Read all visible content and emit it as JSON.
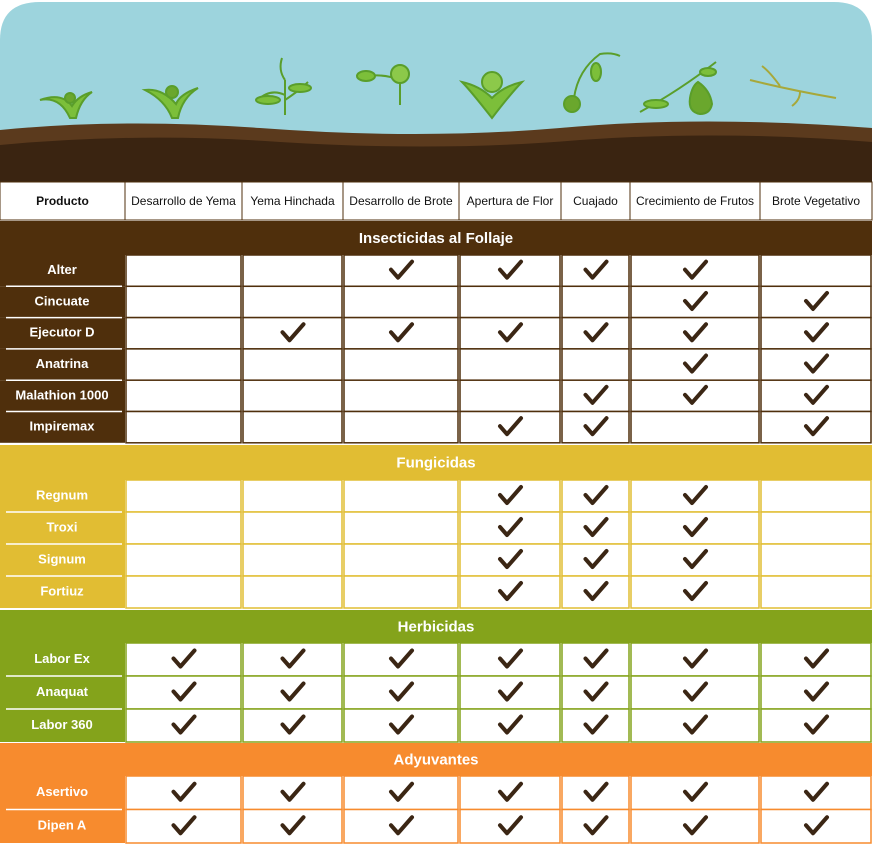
{
  "columns": [
    "Producto",
    "Desarrollo de Yema",
    "Yema Hinchada",
    "Desarrollo de Brote",
    "Apertura de Flor",
    "Cuajado",
    "Crecimiento de Frutos",
    "Brote Vegetativo"
  ],
  "sections": [
    {
      "title": "Insecticidas al Follaje",
      "color": "#4f2f0c",
      "rows": [
        {
          "name": "Alter",
          "checks": [
            false,
            false,
            true,
            true,
            true,
            true,
            false
          ]
        },
        {
          "name": "Cincuate",
          "checks": [
            false,
            false,
            false,
            false,
            false,
            true,
            true
          ]
        },
        {
          "name": "Ejecutor D",
          "checks": [
            false,
            true,
            true,
            true,
            true,
            true,
            true
          ]
        },
        {
          "name": "Anatrina",
          "checks": [
            false,
            false,
            false,
            false,
            false,
            true,
            true
          ]
        },
        {
          "name": "Malathion 1000",
          "checks": [
            false,
            false,
            false,
            false,
            true,
            true,
            true
          ]
        },
        {
          "name": "Impiremax",
          "checks": [
            false,
            false,
            false,
            true,
            true,
            false,
            true
          ]
        }
      ]
    },
    {
      "title": "Fungicidas",
      "color": "#e1bd33",
      "rows": [
        {
          "name": "Regnum",
          "checks": [
            false,
            false,
            false,
            true,
            true,
            true,
            false
          ]
        },
        {
          "name": "Troxi",
          "checks": [
            false,
            false,
            false,
            true,
            true,
            true,
            false
          ]
        },
        {
          "name": "Signum",
          "checks": [
            false,
            false,
            false,
            true,
            true,
            true,
            false
          ]
        },
        {
          "name": "Fortiuz",
          "checks": [
            false,
            false,
            false,
            true,
            true,
            true,
            false
          ]
        }
      ]
    },
    {
      "title": "Herbicidas",
      "color": "#84a31b",
      "rows": [
        {
          "name": "Labor Ex",
          "checks": [
            true,
            true,
            true,
            true,
            true,
            true,
            true
          ]
        },
        {
          "name": "Anaquat",
          "checks": [
            true,
            true,
            true,
            true,
            true,
            true,
            true
          ]
        },
        {
          "name": "Labor 360",
          "checks": [
            true,
            true,
            true,
            true,
            true,
            true,
            true
          ]
        }
      ]
    },
    {
      "title": "Adyuvantes",
      "color": "#f78b2e",
      "rows": [
        {
          "name": "Asertivo",
          "checks": [
            true,
            true,
            true,
            true,
            true,
            true,
            true
          ]
        },
        {
          "name": "Dipen A",
          "checks": [
            true,
            true,
            true,
            true,
            true,
            true,
            true
          ]
        }
      ]
    }
  ]
}
